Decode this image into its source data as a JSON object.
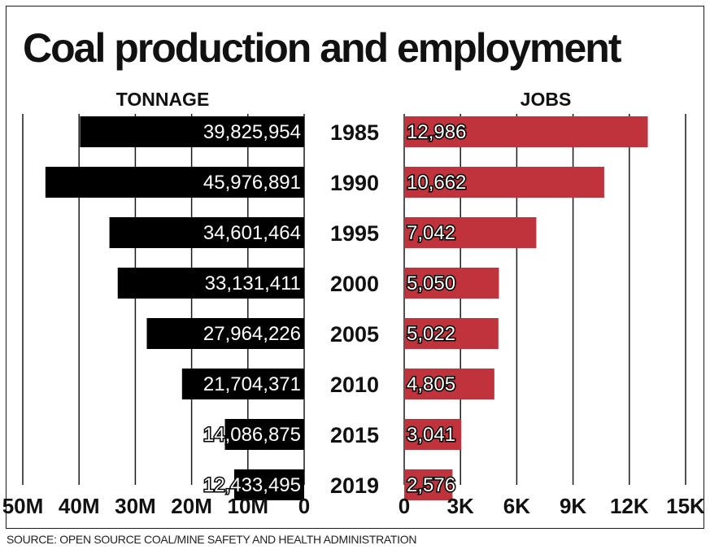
{
  "title": "Coal production and employment",
  "source": "SOURCE: OPEN SOURCE COAL/MINE SAFETY AND HEALTH ADMINISTRATION",
  "colors": {
    "tonnage_bar": "#000000",
    "jobs_bar": "#c0323c",
    "text": "#111111"
  },
  "chart_data": {
    "type": "bar",
    "orientation": "horizontal",
    "layout": "butterfly",
    "categories": [
      "1985",
      "1990",
      "1995",
      "2000",
      "2005",
      "2010",
      "2015",
      "2019"
    ],
    "series": [
      {
        "name": "TONNAGE",
        "values": [
          39825954,
          45976891,
          34601464,
          33131411,
          27964226,
          21704371,
          14086875,
          12433495
        ],
        "labels": [
          "39,825,954",
          "45,976,891",
          "34,601,464",
          "33,131,411",
          "27,964,226",
          "21,704,371",
          "14,086,875",
          "12,433,495"
        ],
        "axis_range": [
          0,
          50000000
        ],
        "tick_values": [
          50000000,
          40000000,
          30000000,
          20000000,
          10000000,
          0
        ],
        "tick_labels": [
          "50M",
          "40M",
          "30M",
          "20M",
          "10M",
          "0"
        ],
        "direction": "leftward"
      },
      {
        "name": "JOBS",
        "values": [
          12986,
          10662,
          7042,
          5050,
          5022,
          4805,
          3041,
          2576
        ],
        "labels": [
          "12,986",
          "10,662",
          "7,042",
          "5,050",
          "5,022",
          "4,805",
          "3,041",
          "2,576"
        ],
        "axis_range": [
          0,
          15000
        ],
        "tick_values": [
          0,
          3000,
          6000,
          9000,
          12000,
          15000
        ],
        "tick_labels": [
          "0",
          "3K",
          "6K",
          "9K",
          "12K",
          "15K"
        ],
        "direction": "rightward"
      }
    ],
    "grid": true,
    "legend": "none"
  }
}
